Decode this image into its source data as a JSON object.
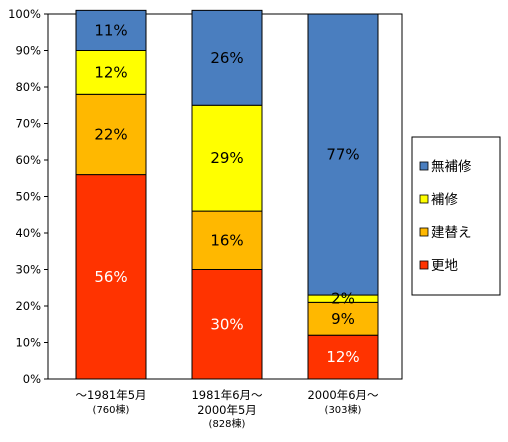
{
  "chart_data": {
    "type": "bar",
    "stacked": true,
    "normalized": true,
    "categories": [
      {
        "line1": "～1981年5月",
        "line2": "",
        "sub": "(760棟)"
      },
      {
        "line1": "1981年6月～",
        "line2": "2000年5月",
        "sub": "(828棟)"
      },
      {
        "line1": "2000年6月～",
        "line2": "",
        "sub": "(303棟)"
      }
    ],
    "series": [
      {
        "name": "更地",
        "color": "#ff3300",
        "label_color": "#ffffff",
        "values": [
          56,
          30,
          12
        ]
      },
      {
        "name": "建替え",
        "color": "#ffb800",
        "label_color": "#000000",
        "values": [
          22,
          16,
          9
        ]
      },
      {
        "name": "補修",
        "color": "#ffff00",
        "label_color": "#000000",
        "values": [
          12,
          29,
          2
        ]
      },
      {
        "name": "無補修",
        "color": "#4a7ebf",
        "label_color": "#000000",
        "values": [
          11,
          26,
          77
        ]
      }
    ],
    "data_labels": [
      [
        "56%",
        "30%",
        "12%"
      ],
      [
        "22%",
        "16%",
        "9%"
      ],
      [
        "12%",
        "29%",
        "2%"
      ],
      [
        "11%",
        "26%",
        "77%"
      ]
    ],
    "yticks": [
      "0%",
      "10%",
      "20%",
      "30%",
      "40%",
      "50%",
      "60%",
      "70%",
      "80%",
      "90%",
      "100%"
    ],
    "ylim": [
      0,
      100
    ],
    "legend_order": [
      "無補修",
      "補修",
      "建替え",
      "更地"
    ],
    "legend_position": "right",
    "grid": false
  }
}
